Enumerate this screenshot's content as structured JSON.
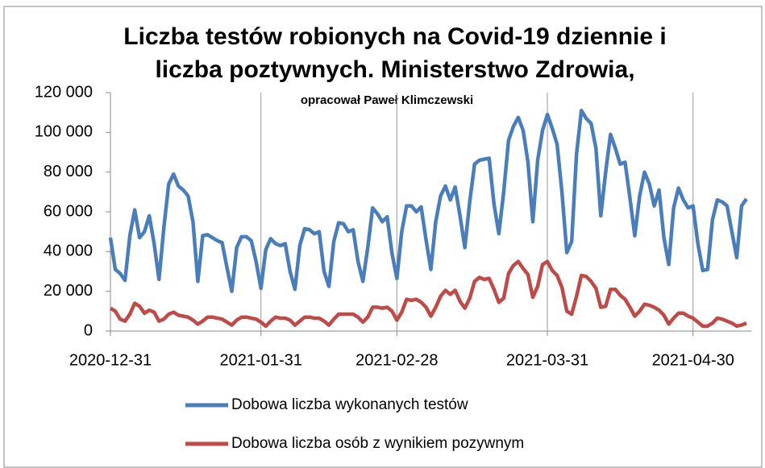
{
  "chart_data": {
    "type": "line",
    "title": [
      "Liczba testów robionych na Covid-19 dziennie i",
      "liczba poztywnych. Ministerstwo Zdrowia,"
    ],
    "subtitle": "opracował Paweł Klimczewski",
    "x": [
      "2020-12-31",
      "2021-01-01",
      "2021-01-02",
      "2021-01-03",
      "2021-01-04",
      "2021-01-05",
      "2021-01-06",
      "2021-01-07",
      "2021-01-08",
      "2021-01-09",
      "2021-01-10",
      "2021-01-11",
      "2021-01-12",
      "2021-01-13",
      "2021-01-14",
      "2021-01-15",
      "2021-01-16",
      "2021-01-17",
      "2021-01-18",
      "2021-01-19",
      "2021-01-20",
      "2021-01-21",
      "2021-01-22",
      "2021-01-23",
      "2021-01-24",
      "2021-01-25",
      "2021-01-26",
      "2021-01-27",
      "2021-01-28",
      "2021-01-29",
      "2021-01-30",
      "2021-01-31",
      "2021-02-01",
      "2021-02-02",
      "2021-02-03",
      "2021-02-04",
      "2021-02-05",
      "2021-02-06",
      "2021-02-07",
      "2021-02-08",
      "2021-02-09",
      "2021-02-10",
      "2021-02-11",
      "2021-02-12",
      "2021-02-13",
      "2021-02-14",
      "2021-02-15",
      "2021-02-16",
      "2021-02-17",
      "2021-02-18",
      "2021-02-19",
      "2021-02-20",
      "2021-02-21",
      "2021-02-22",
      "2021-02-23",
      "2021-02-24",
      "2021-02-25",
      "2021-02-26",
      "2021-02-27",
      "2021-02-28",
      "2021-03-01",
      "2021-03-02",
      "2021-03-03",
      "2021-03-04",
      "2021-03-05",
      "2021-03-06",
      "2021-03-07",
      "2021-03-08",
      "2021-03-09",
      "2021-03-10",
      "2021-03-11",
      "2021-03-12",
      "2021-03-13",
      "2021-03-14",
      "2021-03-15",
      "2021-03-16",
      "2021-03-17",
      "2021-03-18",
      "2021-03-19",
      "2021-03-20",
      "2021-03-21",
      "2021-03-22",
      "2021-03-23",
      "2021-03-24",
      "2021-03-25",
      "2021-03-26",
      "2021-03-27",
      "2021-03-28",
      "2021-03-29",
      "2021-03-30",
      "2021-03-31",
      "2021-04-01",
      "2021-04-02",
      "2021-04-03",
      "2021-04-04",
      "2021-04-05",
      "2021-04-06",
      "2021-04-07",
      "2021-04-08",
      "2021-04-09",
      "2021-04-10",
      "2021-04-11",
      "2021-04-12",
      "2021-04-13",
      "2021-04-14",
      "2021-04-15",
      "2021-04-16",
      "2021-04-17",
      "2021-04-18",
      "2021-04-19",
      "2021-04-20",
      "2021-04-21",
      "2021-04-22",
      "2021-04-23",
      "2021-04-24",
      "2021-04-25",
      "2021-04-26",
      "2021-04-27",
      "2021-04-28",
      "2021-04-29",
      "2021-04-30",
      "2021-05-01",
      "2021-05-02",
      "2021-05-03",
      "2021-05-04",
      "2021-05-05",
      "2021-05-06",
      "2021-05-07",
      "2021-05-08",
      "2021-05-09",
      "2021-05-10",
      "2021-05-11"
    ],
    "series": [
      {
        "name": "Dobowa liczba wykonanych testów",
        "color": "#4a7ebb",
        "values": [
          47000,
          31000,
          29000,
          25500,
          48000,
          61000,
          47000,
          50000,
          58000,
          44000,
          26000,
          52000,
          74000,
          79000,
          73000,
          71000,
          68000,
          55000,
          25000,
          48000,
          48500,
          47000,
          45500,
          44500,
          32000,
          20000,
          42000,
          47500,
          47500,
          45500,
          35000,
          21500,
          41000,
          46500,
          44000,
          43000,
          44000,
          30000,
          21000,
          43000,
          51500,
          51000,
          49000,
          50000,
          30000,
          22500,
          45000,
          54500,
          54000,
          50000,
          51000,
          35000,
          25000,
          42000,
          62000,
          59000,
          55000,
          57500,
          39000,
          26500,
          50000,
          63000,
          63000,
          60000,
          62500,
          46000,
          31000,
          55000,
          68000,
          73000,
          66000,
          72500,
          58000,
          42000,
          65000,
          84000,
          86000,
          86500,
          87000,
          64000,
          49000,
          70000,
          96000,
          103000,
          107500,
          101000,
          85000,
          55000,
          86000,
          101000,
          109000,
          102000,
          94000,
          70000,
          39500,
          45000,
          89000,
          111000,
          107000,
          104500,
          92000,
          58000,
          80000,
          99000,
          92000,
          84000,
          85000,
          67000,
          48000,
          68000,
          80000,
          74000,
          63000,
          71000,
          47000,
          33500,
          62000,
          72000,
          66000,
          62000,
          63000,
          44000,
          30500,
          31000,
          56000,
          66000,
          65000,
          63000,
          50000,
          37000,
          63000,
          66500
        ]
      },
      {
        "name": "Dobowa liczba osób z wynikiem pozywnym",
        "color": "#be4b48",
        "values": [
          11500,
          10000,
          6000,
          5000,
          8500,
          14000,
          12500,
          9000,
          10500,
          9500,
          5000,
          6000,
          8500,
          9500,
          8000,
          7500,
          7000,
          5500,
          3500,
          5000,
          7000,
          7000,
          6500,
          6000,
          4500,
          3000,
          5500,
          7000,
          7000,
          6500,
          6000,
          4500,
          2500,
          5000,
          7000,
          6500,
          6500,
          5500,
          3000,
          5000,
          7000,
          7000,
          6500,
          6500,
          5000,
          3000,
          6000,
          8500,
          8500,
          8500,
          8500,
          7000,
          4500,
          7000,
          12000,
          12000,
          11500,
          12000,
          10000,
          5500,
          9500,
          16000,
          15500,
          16000,
          14500,
          12000,
          7500,
          12000,
          17500,
          20500,
          18500,
          20500,
          15000,
          11500,
          16500,
          25000,
          27000,
          26000,
          26500,
          21000,
          14500,
          16500,
          29000,
          33000,
          35000,
          31500,
          28500,
          17000,
          22500,
          33500,
          35000,
          30500,
          28000,
          22000,
          10000,
          8500,
          17500,
          28000,
          27500,
          25000,
          21500,
          12000,
          12500,
          21000,
          21000,
          18000,
          16000,
          12000,
          7500,
          10000,
          13500,
          13000,
          12000,
          10500,
          8000,
          3500,
          6500,
          9000,
          9000,
          7500,
          6500,
          4500,
          2500,
          2500,
          4000,
          6500,
          6000,
          5000,
          4000,
          2500,
          3000,
          4000
        ]
      }
    ],
    "xlim": [
      "2020-12-31",
      "2021-05-12"
    ],
    "xticks": [
      "2020-12-31",
      "2021-01-31",
      "2021-02-28",
      "2021-03-31",
      "2021-04-30"
    ],
    "ylim": [
      0,
      120000
    ],
    "yticks": [
      0,
      {
        "value": 20000,
        "label": "20 000"
      },
      {
        "value": 40000,
        "label": "40 000"
      },
      {
        "value": 60000,
        "label": "60 000"
      },
      {
        "value": 80000,
        "label": "80 000"
      },
      {
        "value": 100000,
        "label": "100 000"
      },
      {
        "value": 120000,
        "label": "120 000"
      }
    ],
    "grid": true,
    "legend": "bottom"
  }
}
